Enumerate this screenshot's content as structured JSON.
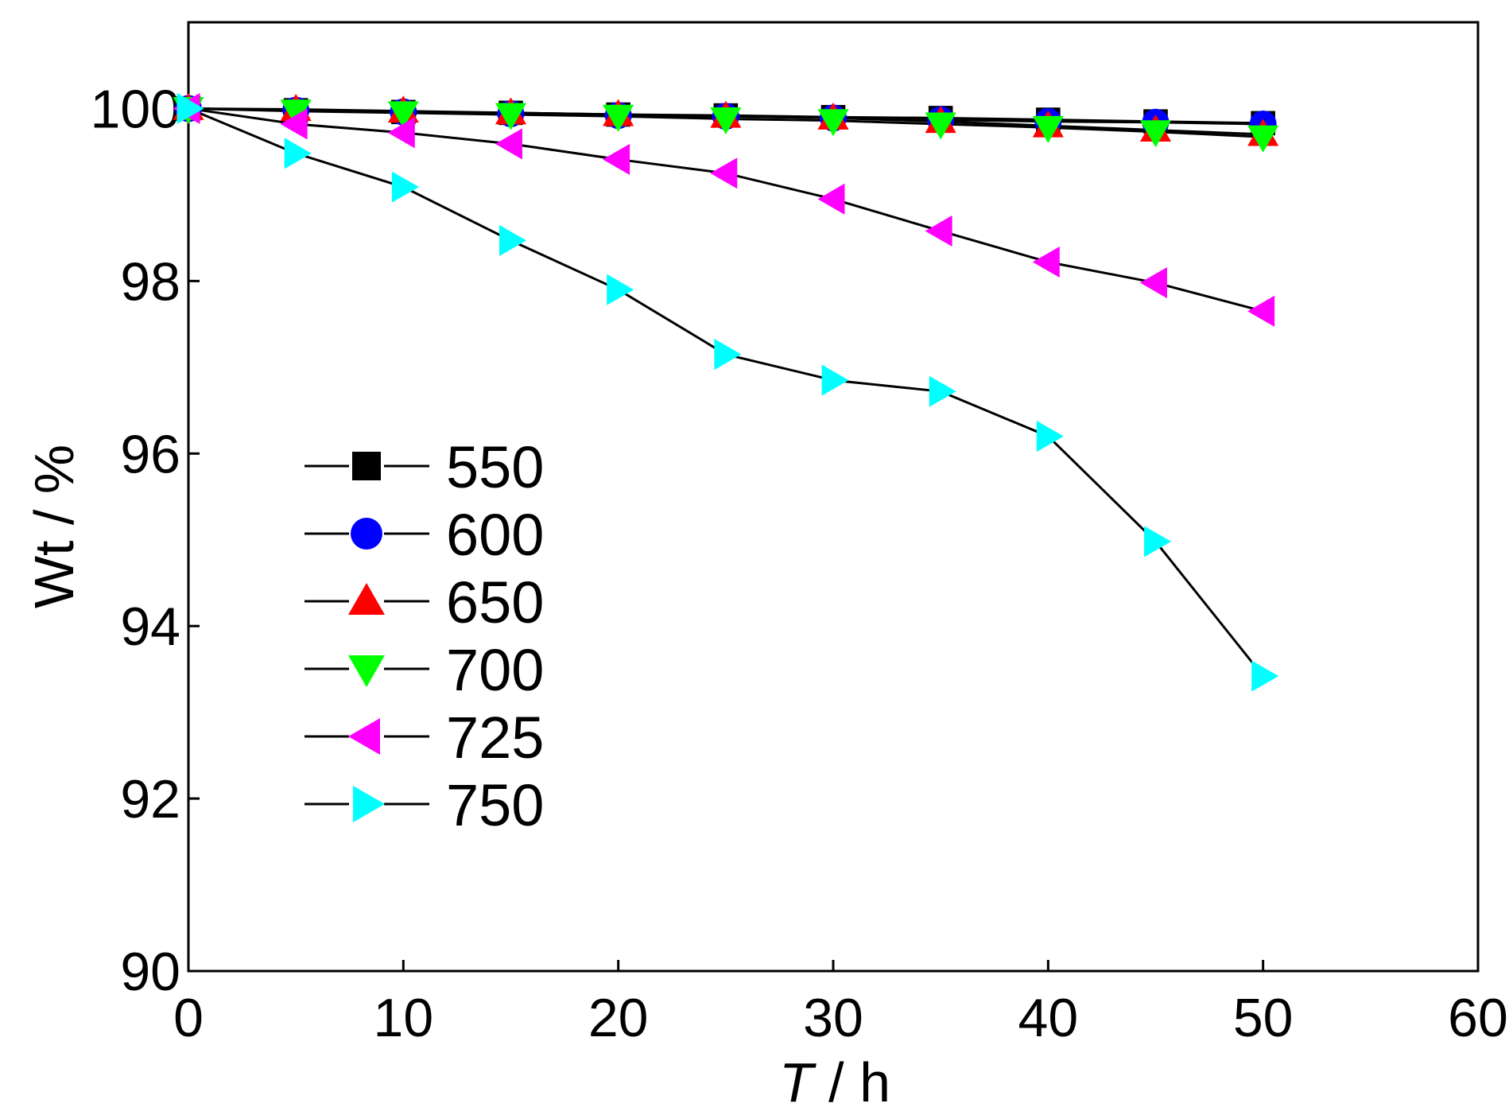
{
  "chart_data": {
    "type": "line",
    "title": "",
    "xlabel_italic": "T",
    "xlabel_rest": " / h",
    "ylabel": "Wt / %",
    "xlim": [
      0,
      60
    ],
    "ylim": [
      90,
      101.0
    ],
    "xticks": [
      "0",
      "10",
      "20",
      "30",
      "40",
      "50",
      "60"
    ],
    "xtick_values": [
      0,
      10,
      20,
      30,
      40,
      50,
      60
    ],
    "yticks": [
      "90",
      "92",
      "94",
      "96",
      "98",
      "100"
    ],
    "ytick_values": [
      90,
      92,
      94,
      96,
      98,
      100
    ],
    "grid": false,
    "legend_position": "center-left",
    "x": [
      0,
      5,
      10,
      15,
      20,
      25,
      30,
      35,
      40,
      45,
      50
    ],
    "series": [
      {
        "name": "550",
        "marker": "square",
        "color": "#000000",
        "values": [
          100.0,
          99.98,
          99.96,
          99.95,
          99.93,
          99.92,
          99.9,
          99.89,
          99.87,
          99.85,
          99.83
        ]
      },
      {
        "name": "600",
        "marker": "circle",
        "color": "#0000ff",
        "values": [
          100.0,
          99.98,
          99.96,
          99.94,
          99.92,
          99.91,
          99.89,
          99.87,
          99.85,
          99.84,
          99.82
        ]
      },
      {
        "name": "650",
        "marker": "triangle-up",
        "color": "#ff0000",
        "values": [
          100.0,
          99.99,
          99.97,
          99.95,
          99.93,
          99.91,
          99.89,
          99.85,
          99.8,
          99.75,
          99.7
        ]
      },
      {
        "name": "700",
        "marker": "triangle-down",
        "color": "#00ff00",
        "values": [
          100.0,
          99.97,
          99.95,
          99.93,
          99.91,
          99.88,
          99.86,
          99.82,
          99.78,
          99.73,
          99.67
        ]
      },
      {
        "name": "725",
        "marker": "triangle-left",
        "color": "#ff00ff",
        "values": [
          100.0,
          99.82,
          99.72,
          99.59,
          99.41,
          99.25,
          98.95,
          98.58,
          98.22,
          97.98,
          97.65
        ]
      },
      {
        "name": "750",
        "marker": "triangle-right",
        "color": "#00ffff",
        "values": [
          100.0,
          99.48,
          99.09,
          98.47,
          97.9,
          97.15,
          96.85,
          96.72,
          96.2,
          94.98,
          93.42
        ]
      }
    ]
  }
}
